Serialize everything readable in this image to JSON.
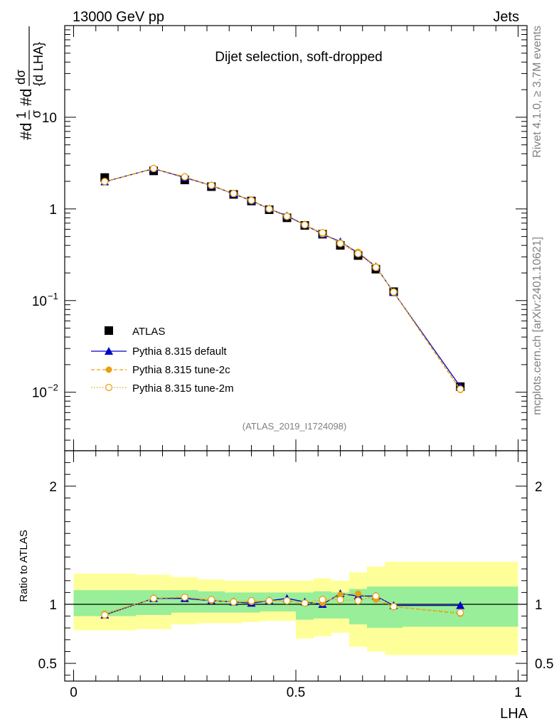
{
  "header": {
    "left": "13000 GeV pp",
    "right": "Jets"
  },
  "chart_data": {
    "type": "scatter",
    "title": "Dijet selection, soft-dropped",
    "analysis_id": "(ATLAS_2019_I1724098)",
    "side_label_top": "Rivet 4.1.0, ≥ 3.7M events",
    "side_label_bottom": "mcplots.cern.ch [arXiv:2401.10621]",
    "xlabel": "LHA",
    "ylabel": "1/σ dσ/d LHA",
    "xlim": [
      -0.02,
      1.02
    ],
    "yscale": "log",
    "ylim": [
      0.0023,
      100
    ],
    "x_ticks": [
      {
        "v": 0,
        "label": "0"
      },
      {
        "v": 0.5,
        "label": "0.5"
      },
      {
        "v": 1,
        "label": "1"
      }
    ],
    "y_ticks": [
      {
        "v": 10,
        "label": "10"
      },
      {
        "v": 1,
        "label": "1"
      },
      {
        "v": 0.1,
        "label": "10",
        "exp": "−1"
      },
      {
        "v": 0.01,
        "label": "10",
        "exp": "−2"
      }
    ],
    "x": [
      0.07,
      0.18,
      0.25,
      0.31,
      0.36,
      0.4,
      0.44,
      0.48,
      0.52,
      0.56,
      0.6,
      0.64,
      0.68,
      0.72,
      0.87
    ],
    "series": [
      {
        "name": "ATLAS",
        "color": "#000000",
        "marker": "square",
        "line": "none",
        "values": [
          2.2,
          2.6,
          2.07,
          1.75,
          1.44,
          1.22,
          0.98,
          0.8,
          0.66,
          0.53,
          0.4,
          0.31,
          0.22,
          0.125,
          0.0115
        ]
      },
      {
        "name": "Pythia 8.315 default",
        "color": "#0000cc",
        "marker": "triangle",
        "line": "solid",
        "values": [
          1.98,
          2.75,
          2.2,
          1.8,
          1.46,
          1.23,
          1.0,
          0.84,
          0.67,
          0.53,
          0.44,
          0.33,
          0.235,
          0.123,
          0.0115
        ]
      },
      {
        "name": "Pythia 8.315 tune-2c",
        "color": "#e8a010",
        "marker": "dot",
        "line": "dashed",
        "values": [
          1.97,
          2.75,
          2.23,
          1.79,
          1.46,
          1.23,
          1.0,
          0.82,
          0.67,
          0.53,
          0.43,
          0.34,
          0.235,
          0.123,
          0.0106
        ]
      },
      {
        "name": "Pythia 8.315 tune-2m",
        "color": "#e8a010",
        "marker": "open-circle",
        "line": "dotted",
        "values": [
          1.99,
          2.76,
          2.24,
          1.81,
          1.47,
          1.24,
          1.0,
          0.83,
          0.67,
          0.55,
          0.42,
          0.325,
          0.23,
          0.124,
          0.0108
        ]
      }
    ],
    "ratio": {
      "ylabel": "Ratio to ATLAS",
      "ylim": [
        0.35,
        2.3
      ],
      "y_ticks": [
        {
          "v": 0.5,
          "label": "0.5"
        },
        {
          "v": 1,
          "label": "1"
        },
        {
          "v": 2,
          "label": "2"
        }
      ],
      "bins": [
        0,
        0.14,
        0.22,
        0.28,
        0.34,
        0.38,
        0.42,
        0.46,
        0.5,
        0.54,
        0.58,
        0.62,
        0.66,
        0.7,
        0.74,
        1.0
      ],
      "yellow": [
        [
          0.78,
          1.26
        ],
        [
          0.79,
          1.25
        ],
        [
          0.83,
          1.23
        ],
        [
          0.84,
          1.21
        ],
        [
          0.84,
          1.2
        ],
        [
          0.85,
          1.2
        ],
        [
          0.86,
          1.2
        ],
        [
          0.86,
          1.2
        ],
        [
          0.71,
          1.2
        ],
        [
          0.73,
          1.22
        ],
        [
          0.76,
          1.2
        ],
        [
          0.64,
          1.27
        ],
        [
          0.6,
          1.32
        ],
        [
          0.57,
          1.36
        ],
        [
          0.57,
          1.36
        ]
      ],
      "green": [
        [
          0.9,
          1.12
        ],
        [
          0.91,
          1.12
        ],
        [
          0.93,
          1.12
        ],
        [
          0.93,
          1.11
        ],
        [
          0.93,
          1.1
        ],
        [
          0.93,
          1.1
        ],
        [
          0.94,
          1.1
        ],
        [
          0.94,
          1.1
        ],
        [
          0.87,
          1.1
        ],
        [
          0.88,
          1.11
        ],
        [
          0.88,
          1.1
        ],
        [
          0.83,
          1.13
        ],
        [
          0.8,
          1.15
        ],
        [
          0.8,
          1.15
        ],
        [
          0.81,
          1.15
        ]
      ],
      "series": [
        {
          "name": "Pythia 8.315 default",
          "values": [
            0.91,
            1.05,
            1.05,
            1.03,
            1.02,
            1.01,
            1.03,
            1.05,
            1.02,
            1.0,
            1.09,
            1.07,
            1.07,
            0.99,
            0.99
          ]
        },
        {
          "name": "Pythia 8.315 tune-2c",
          "values": [
            0.92,
            1.05,
            1.06,
            1.03,
            1.02,
            1.02,
            1.03,
            1.03,
            1.01,
            1.01,
            1.08,
            1.09,
            1.04,
            0.98,
            0.92
          ]
        },
        {
          "name": "Pythia 8.315 tune-2m",
          "values": [
            0.91,
            1.05,
            1.06,
            1.04,
            1.02,
            1.03,
            1.03,
            1.03,
            1.01,
            1.04,
            1.04,
            1.03,
            1.07,
            0.98,
            0.93
          ]
        }
      ]
    }
  }
}
